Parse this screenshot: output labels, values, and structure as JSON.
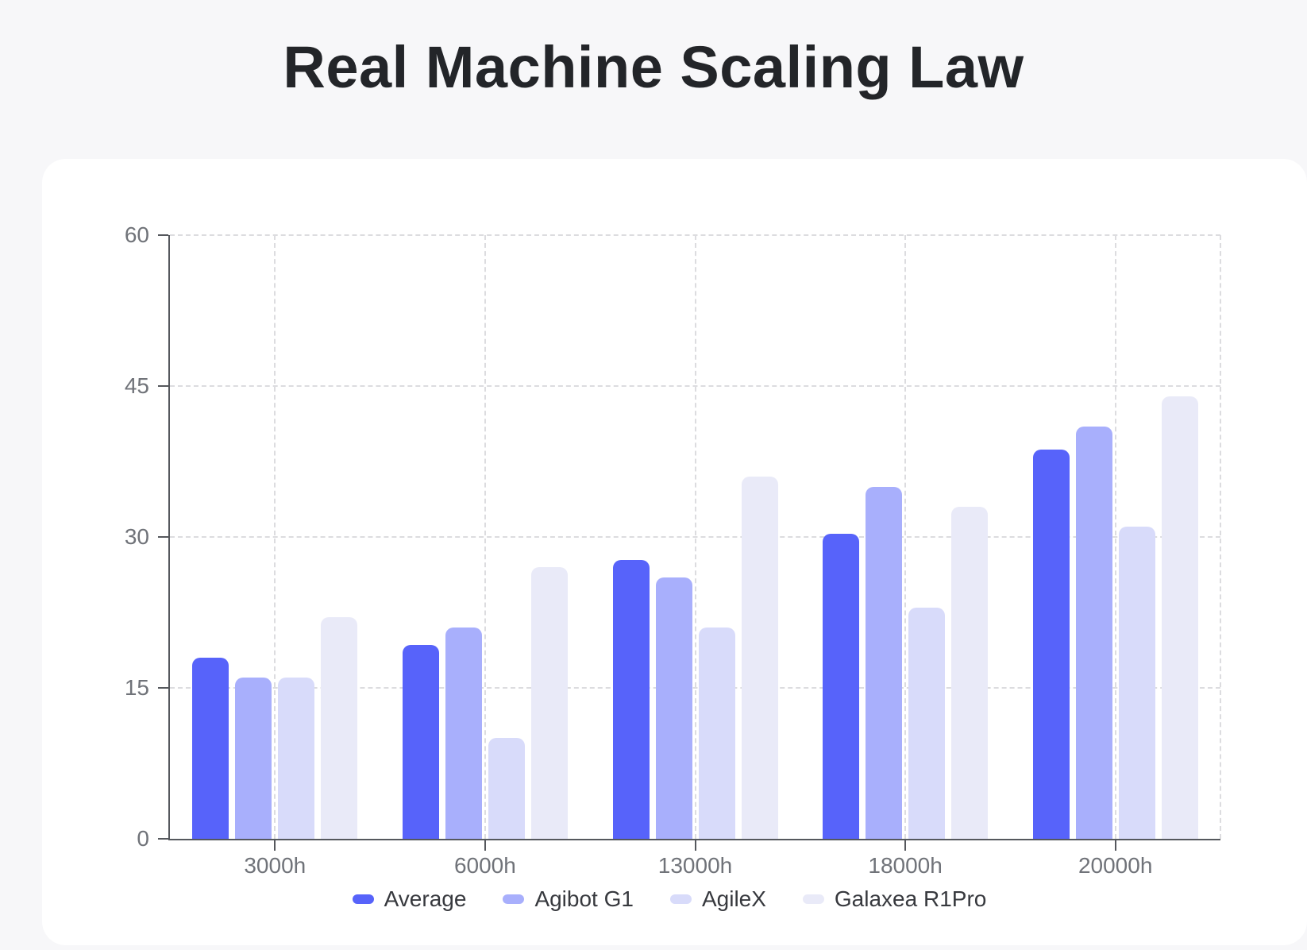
{
  "page": {
    "title": "Real Machine Scaling Law",
    "background_color": "#F7F7F9",
    "card_color": "#FFFFFF"
  },
  "chart_data": {
    "type": "bar",
    "title": "Real Machine Scaling Law",
    "categories": [
      "3000h",
      "6000h",
      "13000h",
      "18000h",
      "20000h"
    ],
    "series": [
      {
        "name": "Average",
        "color": "#5763FA",
        "values": [
          18,
          19.3,
          27.7,
          30.3,
          38.7
        ]
      },
      {
        "name": "Agibot G1",
        "color": "#A8AFFC",
        "values": [
          16,
          21,
          26,
          35,
          41
        ]
      },
      {
        "name": "AgileX",
        "color": "#D8DBFA",
        "values": [
          16,
          10,
          21,
          23,
          31
        ]
      },
      {
        "name": "Galaxea R1Pro",
        "color": "#E9EAF8",
        "values": [
          22,
          27,
          36,
          33,
          44
        ]
      }
    ],
    "xlabel": "",
    "ylabel": "",
    "ylim": [
      0,
      60
    ],
    "yticks": [
      0,
      15,
      30,
      45,
      60
    ],
    "grid": true,
    "grid_style": "dashed",
    "legend_position": "bottom",
    "axis_color": "#55585D",
    "gridline_color": "#DCDCDF",
    "tick_label_color": "#707379"
  }
}
